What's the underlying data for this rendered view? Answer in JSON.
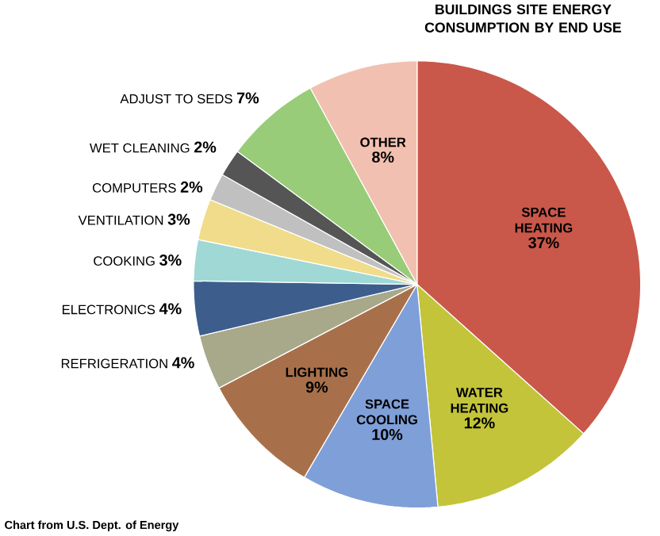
{
  "chart_data": {
    "type": "pie",
    "title": "BUILDINGS SITE ENERGY CONSUMPTION BY END USE",
    "categories": [
      "SPACE HEATING",
      "WATER HEATING",
      "SPACE COOLING",
      "LIGHTING",
      "REFRIGERATION",
      "ELECTRONICS",
      "COOKING",
      "VENTILATION",
      "COMPUTERS",
      "WET CLEANING",
      "ADJUST TO SEDS",
      "OTHER"
    ],
    "values": [
      37,
      12,
      10,
      9,
      4,
      4,
      3,
      3,
      2,
      2,
      7,
      8
    ],
    "colors": [
      "#c9584a",
      "#c3c43a",
      "#7f9fd8",
      "#a8704a",
      "#a8a88a",
      "#3d5e8c",
      "#9fd8d4",
      "#f0dc8a",
      "#c0c0c0",
      "#555555",
      "#98cc78",
      "#f2c0b0"
    ],
    "value_labels": [
      "37%",
      "12%",
      "10%",
      "9%",
      "4%",
      "4%",
      "3%",
      "3%",
      "2%",
      "2%",
      "7%",
      "8%"
    ],
    "annotations": [
      "Chart from U.S. Dept. of Energy"
    ]
  }
}
